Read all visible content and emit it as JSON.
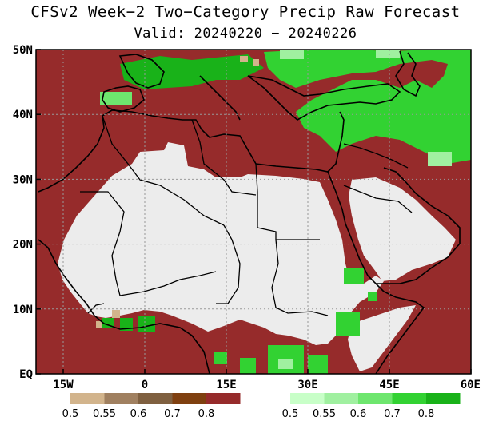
{
  "title": {
    "line1": "CFSv2 Week−2 Two−Category Precip Raw Forecast",
    "line2": "Valid: 20240220 − 20240226"
  },
  "map": {
    "lon_range": [
      -20,
      60
    ],
    "lat_range": [
      0,
      50
    ],
    "lat_ticks": [
      {
        "value": 50,
        "label": "50N"
      },
      {
        "value": 40,
        "label": "40N"
      },
      {
        "value": 30,
        "label": "30N"
      },
      {
        "value": 20,
        "label": "20N"
      },
      {
        "value": 10,
        "label": "10N"
      },
      {
        "value": 0,
        "label": "EQ"
      }
    ],
    "lon_ticks": [
      {
        "value": -15,
        "label": "15W"
      },
      {
        "value": 0,
        "label": "0"
      },
      {
        "value": 15,
        "label": "15E"
      },
      {
        "value": 30,
        "label": "30E"
      },
      {
        "value": 45,
        "label": "45E"
      },
      {
        "value": 60,
        "label": "60E"
      }
    ],
    "gridlines": "dotted",
    "colors": {
      "dry_dominant": "#962b2b",
      "no_signal": "#ececec",
      "wet_dominant": "#19b219"
    }
  },
  "colorbars": {
    "below": {
      "colors": [
        "#d2b48c",
        "#a08060",
        "#7f6040",
        "#7f4010",
        "#962b2b"
      ],
      "labels": [
        "0.5",
        "0.55",
        "0.6",
        "0.7",
        "0.8"
      ]
    },
    "above": {
      "colors": [
        "#c8ffc8",
        "#a0f0a0",
        "#6ee66e",
        "#32d232",
        "#19b219"
      ],
      "labels": [
        "0.5",
        "0.55",
        "0.6",
        "0.7",
        "0.8"
      ]
    }
  }
}
